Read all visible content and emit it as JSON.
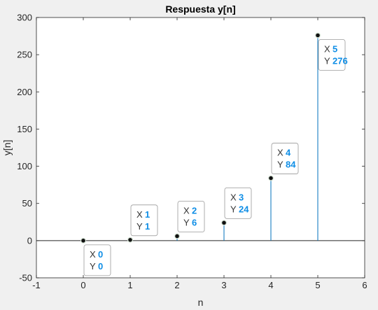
{
  "chart_data": {
    "type": "stem",
    "title": "Respuesta y[n]",
    "xlabel": "n",
    "ylabel": "y[n]",
    "xlim": [
      -1,
      6
    ],
    "ylim": [
      -50,
      300
    ],
    "xticks": [
      -1,
      0,
      1,
      2,
      3,
      4,
      5,
      6
    ],
    "yticks": [
      -50,
      0,
      50,
      100,
      150,
      200,
      250,
      300
    ],
    "grid": false,
    "series": [
      {
        "x": [
          0,
          1,
          2,
          3,
          4,
          5
        ],
        "values": [
          0,
          1,
          6,
          24,
          84,
          276
        ],
        "color": "#0072bd"
      }
    ],
    "datatips": [
      {
        "x_key": "X",
        "x": "0",
        "y_key": "Y",
        "y": "0",
        "placement": "below"
      },
      {
        "x_key": "X",
        "x": "1",
        "y_key": "Y",
        "y": "1",
        "placement": "above"
      },
      {
        "x_key": "X",
        "x": "2",
        "y_key": "Y",
        "y": "6",
        "placement": "above"
      },
      {
        "x_key": "X",
        "x": "3",
        "y_key": "Y",
        "y": "24",
        "placement": "above"
      },
      {
        "x_key": "X",
        "x": "4",
        "y_key": "Y",
        "y": "84",
        "placement": "above"
      },
      {
        "x_key": "X",
        "x": "5",
        "y_key": "Y",
        "y": "276",
        "placement": "below"
      }
    ],
    "colors": {
      "stem": "#0072bd",
      "marker": "#111111",
      "datatip_value": "#0f8ee6",
      "axes_background": "#ffffff",
      "figure_background": "#f0f0f0"
    }
  }
}
